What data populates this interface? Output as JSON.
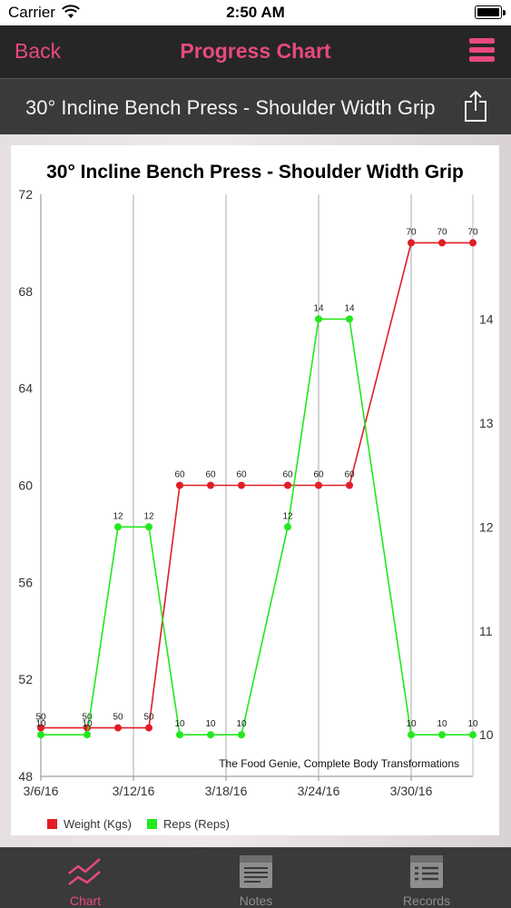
{
  "status": {
    "carrier": "Carrier",
    "time": "2:50 AM"
  },
  "nav": {
    "back_label": "Back",
    "title": "Progress Chart"
  },
  "header": {
    "exercise_title": "30° Incline Bench Press - Shoulder Width Grip"
  },
  "chart": {
    "watermark": "The Food Genie, Complete Body Transformations"
  },
  "tabs": [
    {
      "label": "Chart",
      "icon": "chart-icon",
      "active": true
    },
    {
      "label": "Notes",
      "icon": "notes-icon",
      "active": false
    },
    {
      "label": "Records",
      "icon": "records-icon",
      "active": false
    }
  ],
  "colors": {
    "accent": "#e8497e",
    "weight": "#e11d25",
    "reps": "#22e81e"
  },
  "chart_data": {
    "type": "line",
    "title": "30° Incline Bench Press - Shoulder Width Grip",
    "x_ticks": [
      "3/6/16",
      "3/12/16",
      "3/18/16",
      "3/24/16",
      "3/30/16"
    ],
    "x_range": [
      "2016-03-06",
      "2016-04-03"
    ],
    "left_axis": {
      "ylim": [
        48,
        72
      ],
      "ticks": [
        48,
        52,
        56,
        60,
        64,
        68,
        72
      ]
    },
    "right_axis": {
      "ylim": [
        9.6,
        15.2
      ],
      "ticks": [
        10,
        11,
        12,
        13,
        14
      ]
    },
    "grid": "vertical",
    "legend": "bottom-left",
    "series": [
      {
        "name": "Weight (Kgs)",
        "axis": "left",
        "color": "#e11d25",
        "points": [
          {
            "x": "2016-03-06",
            "y": 50
          },
          {
            "x": "2016-03-09",
            "y": 50
          },
          {
            "x": "2016-03-11",
            "y": 50
          },
          {
            "x": "2016-03-13",
            "y": 50
          },
          {
            "x": "2016-03-15",
            "y": 60
          },
          {
            "x": "2016-03-17",
            "y": 60
          },
          {
            "x": "2016-03-19",
            "y": 60
          },
          {
            "x": "2016-03-22",
            "y": 60
          },
          {
            "x": "2016-03-24",
            "y": 60
          },
          {
            "x": "2016-03-26",
            "y": 60
          },
          {
            "x": "2016-03-30",
            "y": 70
          },
          {
            "x": "2016-04-01",
            "y": 70
          },
          {
            "x": "2016-04-03",
            "y": 70
          }
        ]
      },
      {
        "name": "Reps (Reps)",
        "axis": "right",
        "color": "#22e81e",
        "points": [
          {
            "x": "2016-03-06",
            "y": 10
          },
          {
            "x": "2016-03-09",
            "y": 10
          },
          {
            "x": "2016-03-11",
            "y": 12
          },
          {
            "x": "2016-03-13",
            "y": 12
          },
          {
            "x": "2016-03-15",
            "y": 10
          },
          {
            "x": "2016-03-17",
            "y": 10
          },
          {
            "x": "2016-03-19",
            "y": 10
          },
          {
            "x": "2016-03-22",
            "y": 12
          },
          {
            "x": "2016-03-24",
            "y": 14
          },
          {
            "x": "2016-03-26",
            "y": 14
          },
          {
            "x": "2016-03-30",
            "y": 10
          },
          {
            "x": "2016-04-01",
            "y": 10
          },
          {
            "x": "2016-04-03",
            "y": 10
          }
        ]
      }
    ]
  }
}
